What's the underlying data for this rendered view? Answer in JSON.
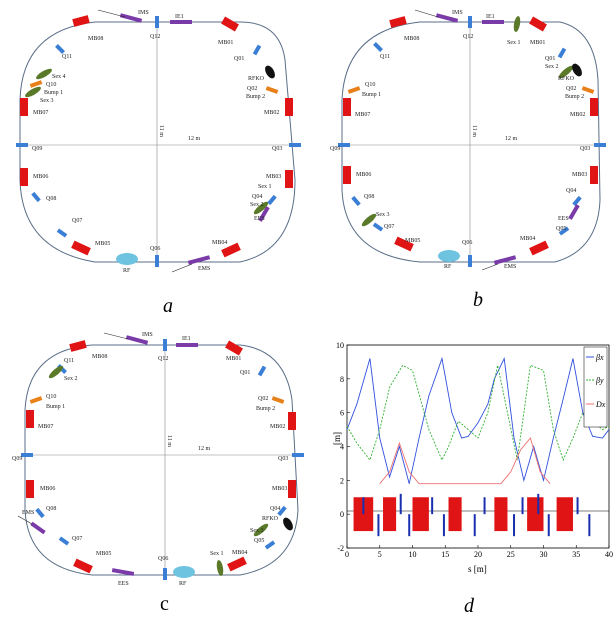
{
  "figure": {
    "panel_labels": {
      "a": "a",
      "b": "b",
      "c": "c",
      "d": "d"
    },
    "colors": {
      "ring": "#5a6e88",
      "dipole": "#e01414",
      "quad": "#3a7fd5",
      "sextupole": "#5a7a2a",
      "bump": "#e8801a",
      "kicker": "#7a3aa8",
      "rf": "#6ec3e0",
      "rfko": "#111111"
    },
    "dim_labels": {
      "horizontal": "12 m",
      "vertical": "11 m"
    }
  },
  "ring_a": {
    "labels": [
      "IMS",
      "IE1",
      "MB08",
      "MB01",
      "Q12",
      "Q11",
      "Q01",
      "Sex 4",
      "RFKO",
      "Q10",
      "Bump 1",
      "Q02",
      "Sex 3",
      "Bump 2",
      "MB07",
      "MB02",
      "Q09",
      "Q03",
      "MB06",
      "MB03",
      "Sex 1",
      "Q08",
      "Q04",
      "Sex 2",
      "EES",
      "Q07",
      "MB04",
      "MB05",
      "RF",
      "Q06",
      "EMS"
    ]
  },
  "ring_b": {
    "labels": [
      "IMS",
      "IE1",
      "Sex 1",
      "MB08",
      "Q12",
      "MB01",
      "Q11",
      "Q01",
      "Sex 2",
      "RFKO",
      "Q10",
      "Q02",
      "Bump 1",
      "Bump 2",
      "MB07",
      "MB02",
      "Q09",
      "Q03",
      "MB06",
      "MB03",
      "Q04",
      "Q08",
      "EES",
      "Sex 3",
      "Q07",
      "Q05",
      "MB05",
      "MB04",
      "RF",
      "Q06",
      "EMS"
    ]
  },
  "ring_c": {
    "labels": [
      "IMS",
      "IE1",
      "MB08",
      "Q12",
      "MB01",
      "Q11",
      "Sex 2",
      "Q01",
      "Q10",
      "Q02",
      "Bump 1",
      "Bump 2",
      "MB07",
      "MB02",
      "Q09",
      "Q03",
      "MB06",
      "MB03",
      "Q08",
      "Q04",
      "RFKO",
      "EMS",
      "Q07",
      "Sex 3",
      "Q05",
      "MB05",
      "MB04",
      "EES",
      "Q06",
      "RF",
      "Sex 1"
    ]
  },
  "chart_data": {
    "type": "line",
    "xlabel": "s [m]",
    "ylabel": "[m]",
    "xlim": [
      0,
      40
    ],
    "ylim": [
      -2,
      10
    ],
    "xticks": [
      0,
      5,
      10,
      15,
      20,
      25,
      30,
      35,
      40
    ],
    "yticks": [
      -2,
      0,
      2,
      4,
      6,
      8,
      10
    ],
    "legend": [
      "βx",
      "βy",
      "Dx"
    ],
    "legend_position": "top-right",
    "series": [
      {
        "name": "βx",
        "color": "#3050e0",
        "x": [
          0,
          1.5,
          3.5,
          5,
          6.5,
          8,
          9.5,
          11,
          12.5,
          14.5,
          16,
          17.5,
          18.5,
          20,
          21.5,
          22.5,
          24,
          25.5,
          27,
          28.5,
          30,
          31.5,
          33,
          34.5,
          36,
          37.5,
          39,
          40
        ],
        "y": [
          5,
          6.5,
          9.2,
          4.5,
          2.2,
          4,
          1.8,
          4.5,
          7,
          9.2,
          6,
          4.5,
          4.6,
          5.4,
          6.5,
          8,
          9.2,
          4.5,
          2,
          4,
          2,
          4.5,
          6.8,
          9.2,
          6,
          4.6,
          4.5,
          5
        ]
      },
      {
        "name": "βy",
        "color": "#30b030",
        "x": [
          0,
          1.5,
          3.5,
          5,
          6.5,
          8.5,
          10,
          12.5,
          14.5,
          15.5,
          17,
          18.5,
          20,
          21.5,
          23,
          24.5,
          26,
          28,
          30,
          31.5,
          33,
          34.5,
          36,
          37.5,
          39,
          40
        ],
        "y": [
          5.2,
          4.2,
          3.2,
          5,
          7.5,
          8.8,
          8.5,
          5,
          3.2,
          4,
          5.5,
          5,
          4.5,
          6,
          8.8,
          6,
          3.2,
          8.8,
          8.5,
          5,
          3.2,
          4.5,
          6,
          5.5,
          5,
          5.2
        ]
      },
      {
        "name": "Dx",
        "color": "#f07070",
        "x": [
          5,
          6.5,
          8,
          9.5,
          11,
          23.5,
          25,
          26.5,
          28,
          29.5,
          31
        ],
        "y": [
          1.8,
          2.5,
          4.2,
          2.5,
          1.8,
          1.8,
          2.5,
          3.8,
          4.5,
          2.5,
          1.8
        ]
      }
    ]
  }
}
